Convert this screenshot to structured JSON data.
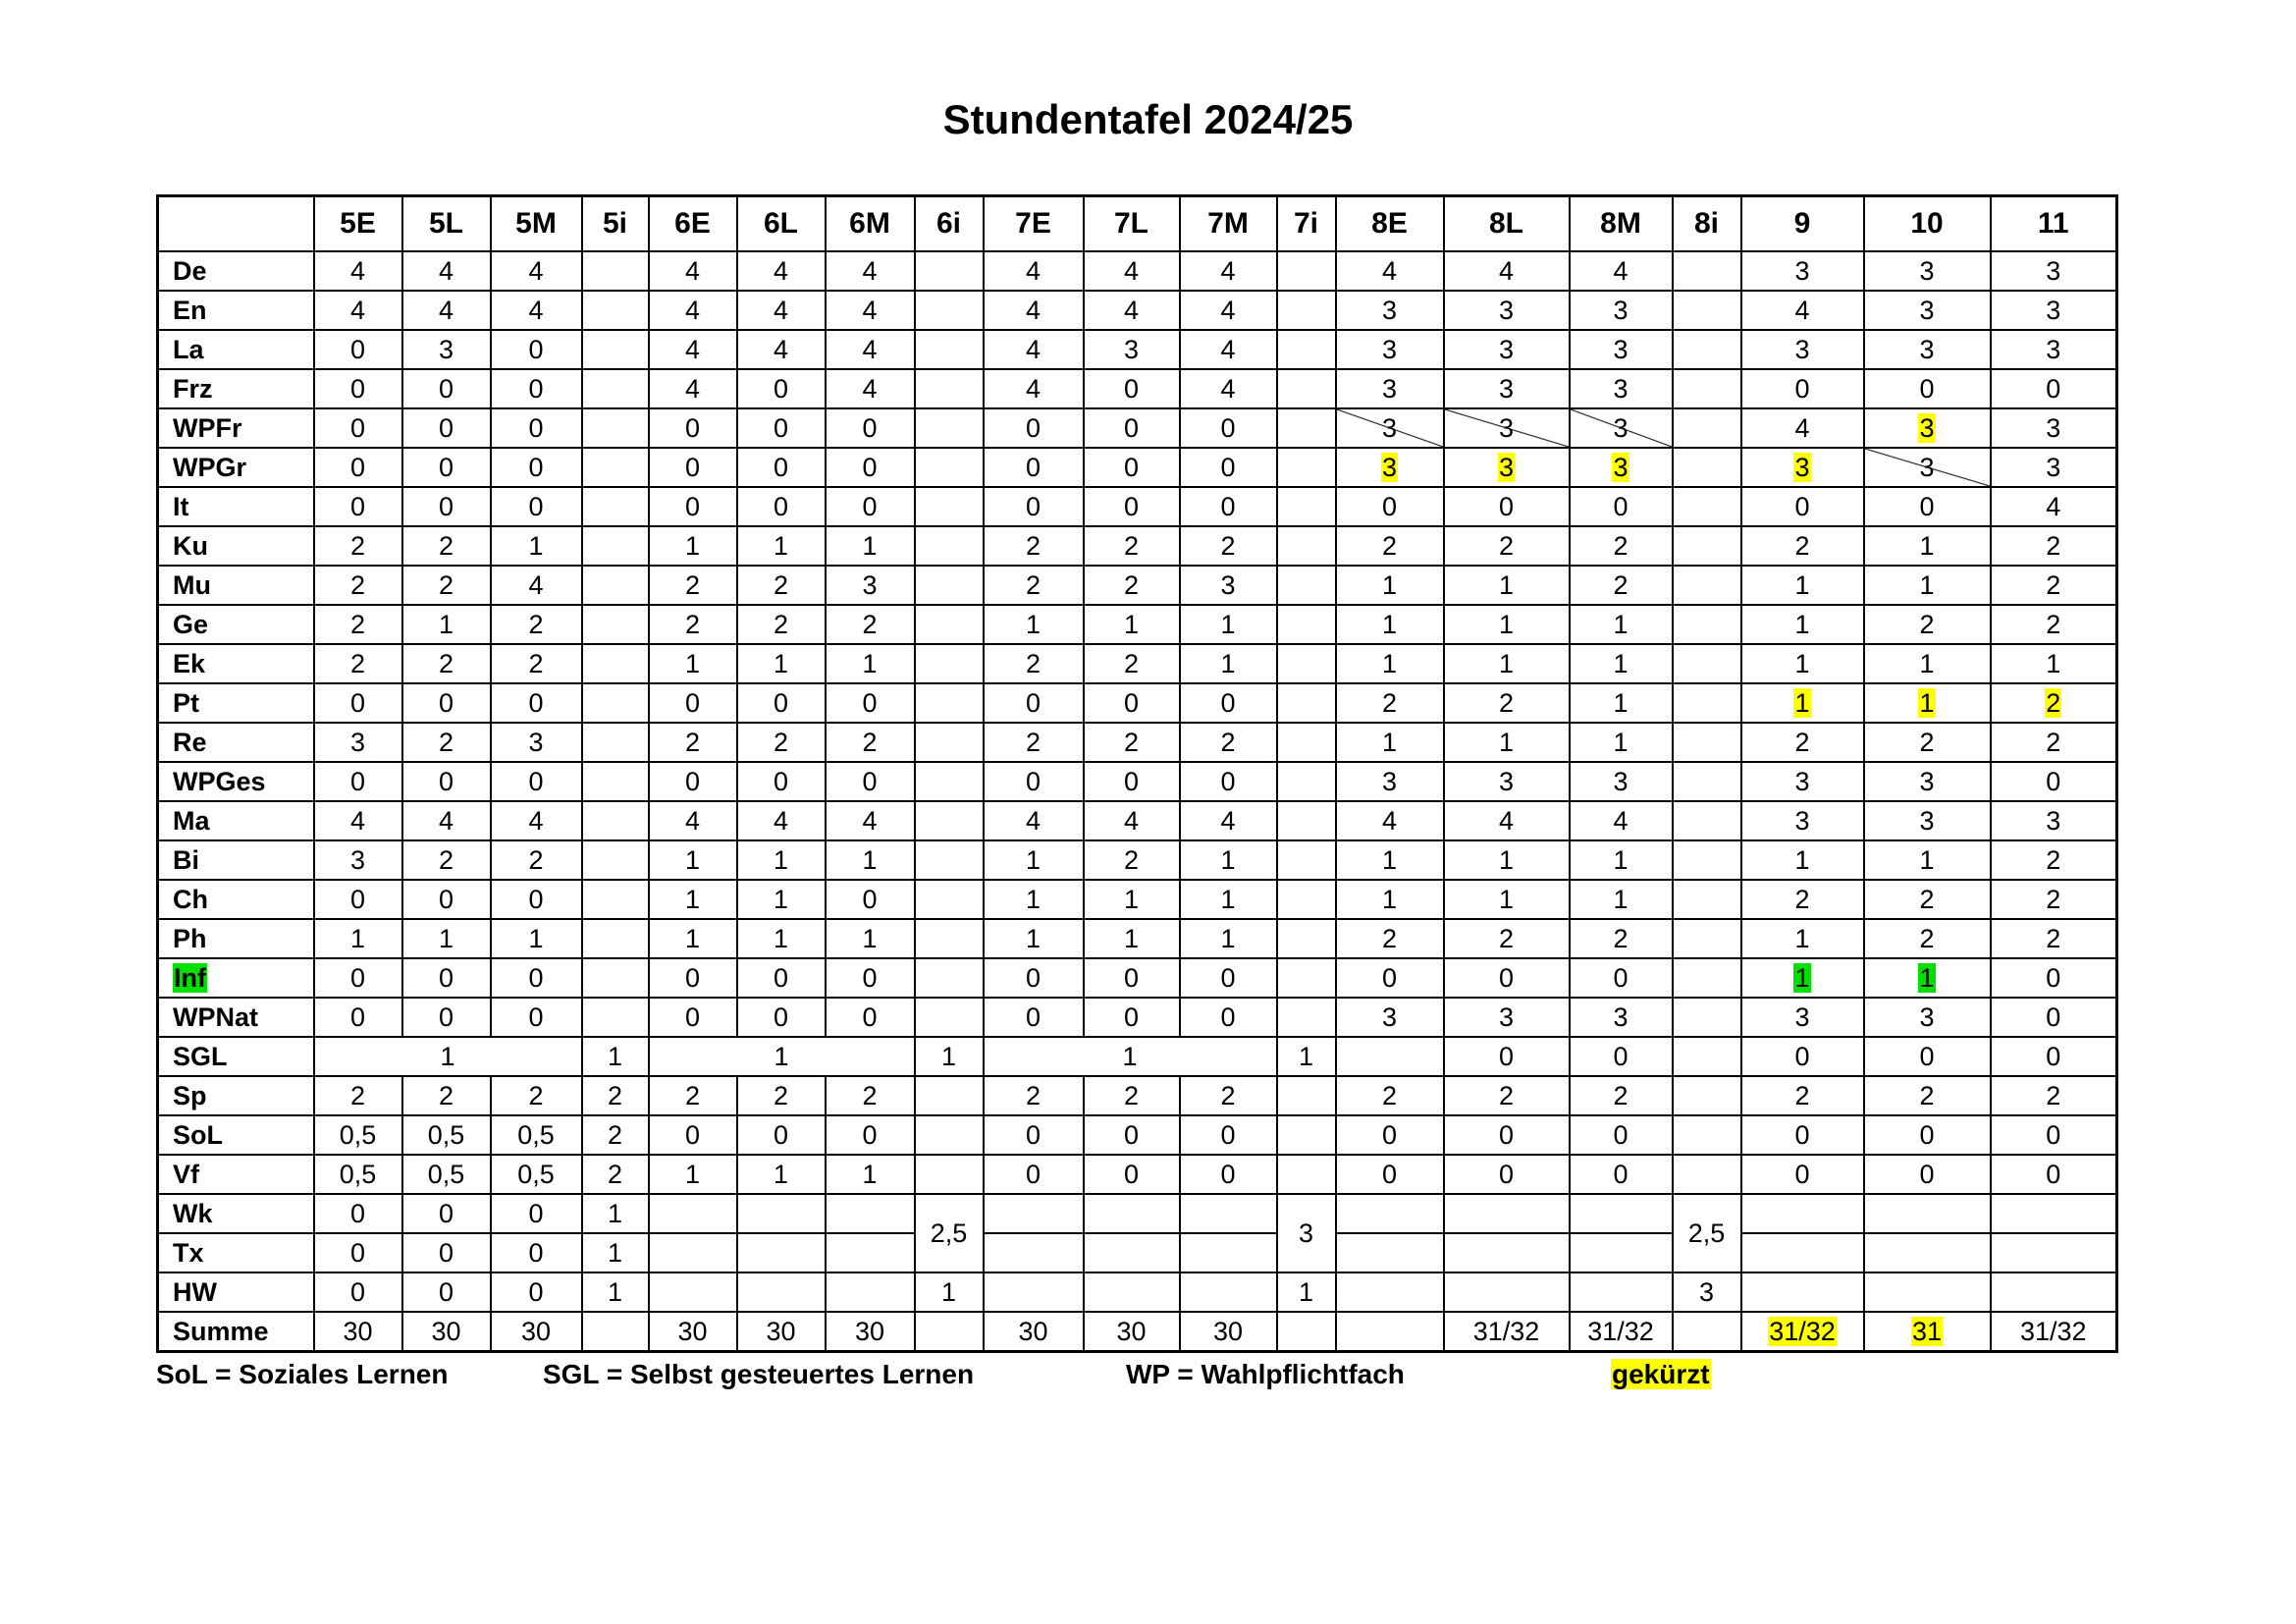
{
  "title": "Stundentafel 2024/25",
  "table": {
    "header": [
      "5E",
      "5L",
      "5M",
      "5i",
      "6E",
      "6L",
      "6M",
      "6i",
      "7E",
      "7L",
      "7M",
      "7i",
      "8E",
      "8L",
      "8M",
      "8i",
      "9",
      "10",
      "11"
    ],
    "rows": [
      {
        "label": "De",
        "cells": [
          4,
          4,
          4,
          null,
          4,
          4,
          4,
          null,
          4,
          4,
          4,
          null,
          4,
          4,
          4,
          null,
          3,
          3,
          3
        ]
      },
      {
        "label": "En",
        "cells": [
          4,
          4,
          4,
          null,
          4,
          4,
          4,
          null,
          4,
          4,
          4,
          null,
          3,
          3,
          3,
          null,
          4,
          3,
          3
        ]
      },
      {
        "label": "La",
        "cells": [
          0,
          3,
          0,
          null,
          4,
          4,
          4,
          null,
          4,
          3,
          4,
          null,
          3,
          3,
          3,
          null,
          3,
          3,
          3
        ]
      },
      {
        "label": "Frz",
        "cells": [
          0,
          0,
          0,
          null,
          4,
          0,
          4,
          null,
          4,
          0,
          4,
          null,
          3,
          3,
          3,
          null,
          0,
          0,
          0
        ]
      },
      {
        "label": "WPFr",
        "cells": [
          0,
          0,
          0,
          null,
          0,
          0,
          0,
          null,
          0,
          0,
          0,
          null,
          3,
          3,
          3,
          null,
          4,
          3,
          3
        ]
      },
      {
        "label": "WPGr",
        "cells": [
          0,
          0,
          0,
          null,
          0,
          0,
          0,
          null,
          0,
          0,
          0,
          null,
          3,
          3,
          3,
          null,
          3,
          3,
          3
        ]
      },
      {
        "label": "It",
        "cells": [
          0,
          0,
          0,
          null,
          0,
          0,
          0,
          null,
          0,
          0,
          0,
          null,
          0,
          0,
          0,
          null,
          0,
          0,
          4
        ]
      },
      {
        "label": "Ku",
        "cells": [
          2,
          2,
          1,
          null,
          1,
          1,
          1,
          null,
          2,
          2,
          2,
          null,
          2,
          2,
          2,
          null,
          2,
          1,
          2
        ]
      },
      {
        "label": "Mu",
        "cells": [
          2,
          2,
          4,
          null,
          2,
          2,
          3,
          null,
          2,
          2,
          3,
          null,
          1,
          1,
          2,
          null,
          1,
          1,
          2
        ]
      },
      {
        "label": "Ge",
        "cells": [
          2,
          1,
          2,
          null,
          2,
          2,
          2,
          null,
          1,
          1,
          1,
          null,
          1,
          1,
          1,
          null,
          1,
          2,
          2
        ]
      },
      {
        "label": "Ek",
        "cells": [
          2,
          2,
          2,
          null,
          1,
          1,
          1,
          null,
          2,
          2,
          1,
          null,
          1,
          1,
          1,
          null,
          1,
          1,
          1
        ]
      },
      {
        "label": "Pt",
        "cells": [
          0,
          0,
          0,
          null,
          0,
          0,
          0,
          null,
          0,
          0,
          0,
          null,
          2,
          2,
          1,
          null,
          1,
          1,
          2
        ]
      },
      {
        "label": "Re",
        "cells": [
          3,
          2,
          3,
          null,
          2,
          2,
          2,
          null,
          2,
          2,
          2,
          null,
          1,
          1,
          1,
          null,
          2,
          2,
          2
        ]
      },
      {
        "label": "WPGes",
        "cells": [
          0,
          0,
          0,
          null,
          0,
          0,
          0,
          null,
          0,
          0,
          0,
          null,
          3,
          3,
          3,
          null,
          3,
          3,
          0
        ]
      },
      {
        "label": "Ma",
        "cells": [
          4,
          4,
          4,
          null,
          4,
          4,
          4,
          null,
          4,
          4,
          4,
          null,
          4,
          4,
          4,
          null,
          3,
          3,
          3
        ]
      },
      {
        "label": "Bi",
        "cells": [
          3,
          2,
          2,
          null,
          1,
          1,
          1,
          null,
          1,
          2,
          1,
          null,
          1,
          1,
          1,
          null,
          1,
          1,
          2
        ]
      },
      {
        "label": "Ch",
        "cells": [
          0,
          0,
          0,
          null,
          1,
          1,
          0,
          null,
          1,
          1,
          1,
          null,
          1,
          1,
          1,
          null,
          2,
          2,
          2
        ]
      },
      {
        "label": "Ph",
        "cells": [
          1,
          1,
          1,
          null,
          1,
          1,
          1,
          null,
          1,
          1,
          1,
          null,
          2,
          2,
          2,
          null,
          1,
          2,
          2
        ]
      },
      {
        "label": "Inf",
        "cells": [
          0,
          0,
          0,
          null,
          0,
          0,
          0,
          null,
          0,
          0,
          0,
          null,
          0,
          0,
          0,
          null,
          1,
          1,
          0
        ]
      },
      {
        "label": "WPNat",
        "cells": [
          0,
          0,
          0,
          null,
          0,
          0,
          0,
          null,
          0,
          0,
          0,
          null,
          3,
          3,
          3,
          null,
          3,
          3,
          0
        ]
      },
      {
        "label": "SGL",
        "cells": [
          1,
          null,
          null,
          1,
          1,
          null,
          null,
          1,
          1,
          null,
          null,
          1,
          null,
          0,
          0,
          null,
          0,
          0,
          0
        ]
      },
      {
        "label": "Sp",
        "cells": [
          2,
          2,
          2,
          2,
          2,
          2,
          2,
          null,
          2,
          2,
          2,
          null,
          2,
          2,
          2,
          null,
          2,
          2,
          2
        ]
      },
      {
        "label": "SoL",
        "cells": [
          "0,5",
          "0,5",
          "0,5",
          2,
          0,
          0,
          0,
          null,
          0,
          0,
          0,
          null,
          0,
          0,
          0,
          null,
          0,
          0,
          0
        ]
      },
      {
        "label": "Vf",
        "cells": [
          "0,5",
          "0,5",
          "0,5",
          2,
          1,
          1,
          1,
          null,
          0,
          0,
          0,
          null,
          0,
          0,
          0,
          null,
          0,
          0,
          0
        ]
      },
      {
        "label": "Wk",
        "cells": [
          0,
          0,
          0,
          1,
          null,
          null,
          null,
          "2,5",
          null,
          null,
          null,
          3,
          null,
          null,
          null,
          "2,5",
          null,
          null,
          null
        ]
      },
      {
        "label": "Tx",
        "cells": [
          0,
          0,
          0,
          1,
          null,
          null,
          null,
          null,
          null,
          null,
          null,
          null,
          null,
          null,
          null,
          null,
          null,
          null,
          null
        ]
      },
      {
        "label": "HW",
        "cells": [
          0,
          0,
          0,
          1,
          null,
          null,
          null,
          1,
          null,
          null,
          null,
          1,
          null,
          null,
          null,
          3,
          null,
          null,
          null
        ]
      },
      {
        "label": "Summe",
        "cells": [
          30,
          30,
          30,
          null,
          30,
          30,
          30,
          null,
          30,
          30,
          30,
          null,
          null,
          "31/32",
          "31/32",
          null,
          "31/32",
          31,
          "31/32"
        ]
      }
    ]
  },
  "legend": [
    "SoL = Soziales Lernen",
    "SGL = Selbst gesteuertes Lernen",
    "WP = Wahlpflichtfach",
    "gekürzt"
  ]
}
